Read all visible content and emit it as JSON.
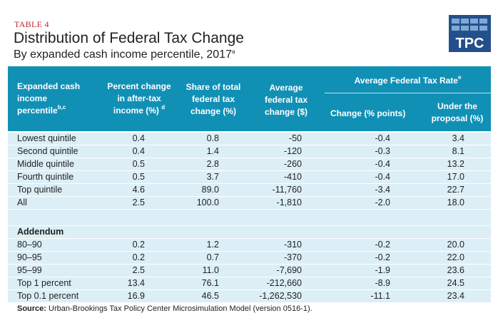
{
  "table_label": "TABLE 4",
  "title": "Distribution of Federal Tax Change",
  "subtitle": "By expanded cash income percentile, 2017",
  "subtitle_note": "a",
  "logo_text": "TPC",
  "colors": {
    "header": "#1190b6",
    "row": "#dceff6",
    "label": "#c0282d",
    "logo": "#23508c"
  },
  "headers": {
    "col0": [
      "Expanded cash",
      "income",
      "percentile"
    ],
    "col0_note": "b,c",
    "col1": [
      "Percent change",
      "in after-tax",
      "income (%)"
    ],
    "col1_note": "d",
    "col2": [
      "Share of total",
      "federal tax",
      "change (%)"
    ],
    "col3": [
      "Average",
      "federal tax",
      "change ($)"
    ],
    "group": "Average Federal Tax Rate",
    "group_note": "e",
    "col4": "Change (% points)",
    "col5": [
      "Under the",
      "proposal (%)"
    ]
  },
  "rows": [
    [
      "Lowest quintile",
      "0.4",
      "0.8",
      "-50",
      "-0.4",
      "3.4"
    ],
    [
      "Second quintile",
      "0.4",
      "1.4",
      "-120",
      "-0.3",
      "8.1"
    ],
    [
      "Middle quintile",
      "0.5",
      "2.8",
      "-260",
      "-0.4",
      "13.2"
    ],
    [
      "Fourth quintile",
      "0.5",
      "3.7",
      "-410",
      "-0.4",
      "17.0"
    ],
    [
      "Top quintile",
      "4.6",
      "89.0",
      "-11,760",
      "-3.4",
      "22.7"
    ],
    [
      "All",
      "2.5",
      "100.0",
      "-1,810",
      "-2.0",
      "18.0"
    ]
  ],
  "addendum_label": "Addendum",
  "addendum_rows": [
    [
      "80–90",
      "0.2",
      "1.2",
      "-310",
      "-0.2",
      "20.0"
    ],
    [
      "90–95",
      "0.2",
      "0.7",
      "-370",
      "-0.2",
      "22.0"
    ],
    [
      "95–99",
      "2.5",
      "11.0",
      "-7,690",
      "-1.9",
      "23.6"
    ],
    [
      "Top 1 percent",
      "13.4",
      "76.1",
      "-212,660",
      "-8.9",
      "24.5"
    ],
    [
      "Top 0.1 percent",
      "16.9",
      "46.5",
      "-1,262,530",
      "-11.1",
      "23.4"
    ]
  ],
  "source_label": "Source:",
  "source_text": " Urban-Brookings Tax Policy Center Microsimulation Model (version 0516-1)."
}
